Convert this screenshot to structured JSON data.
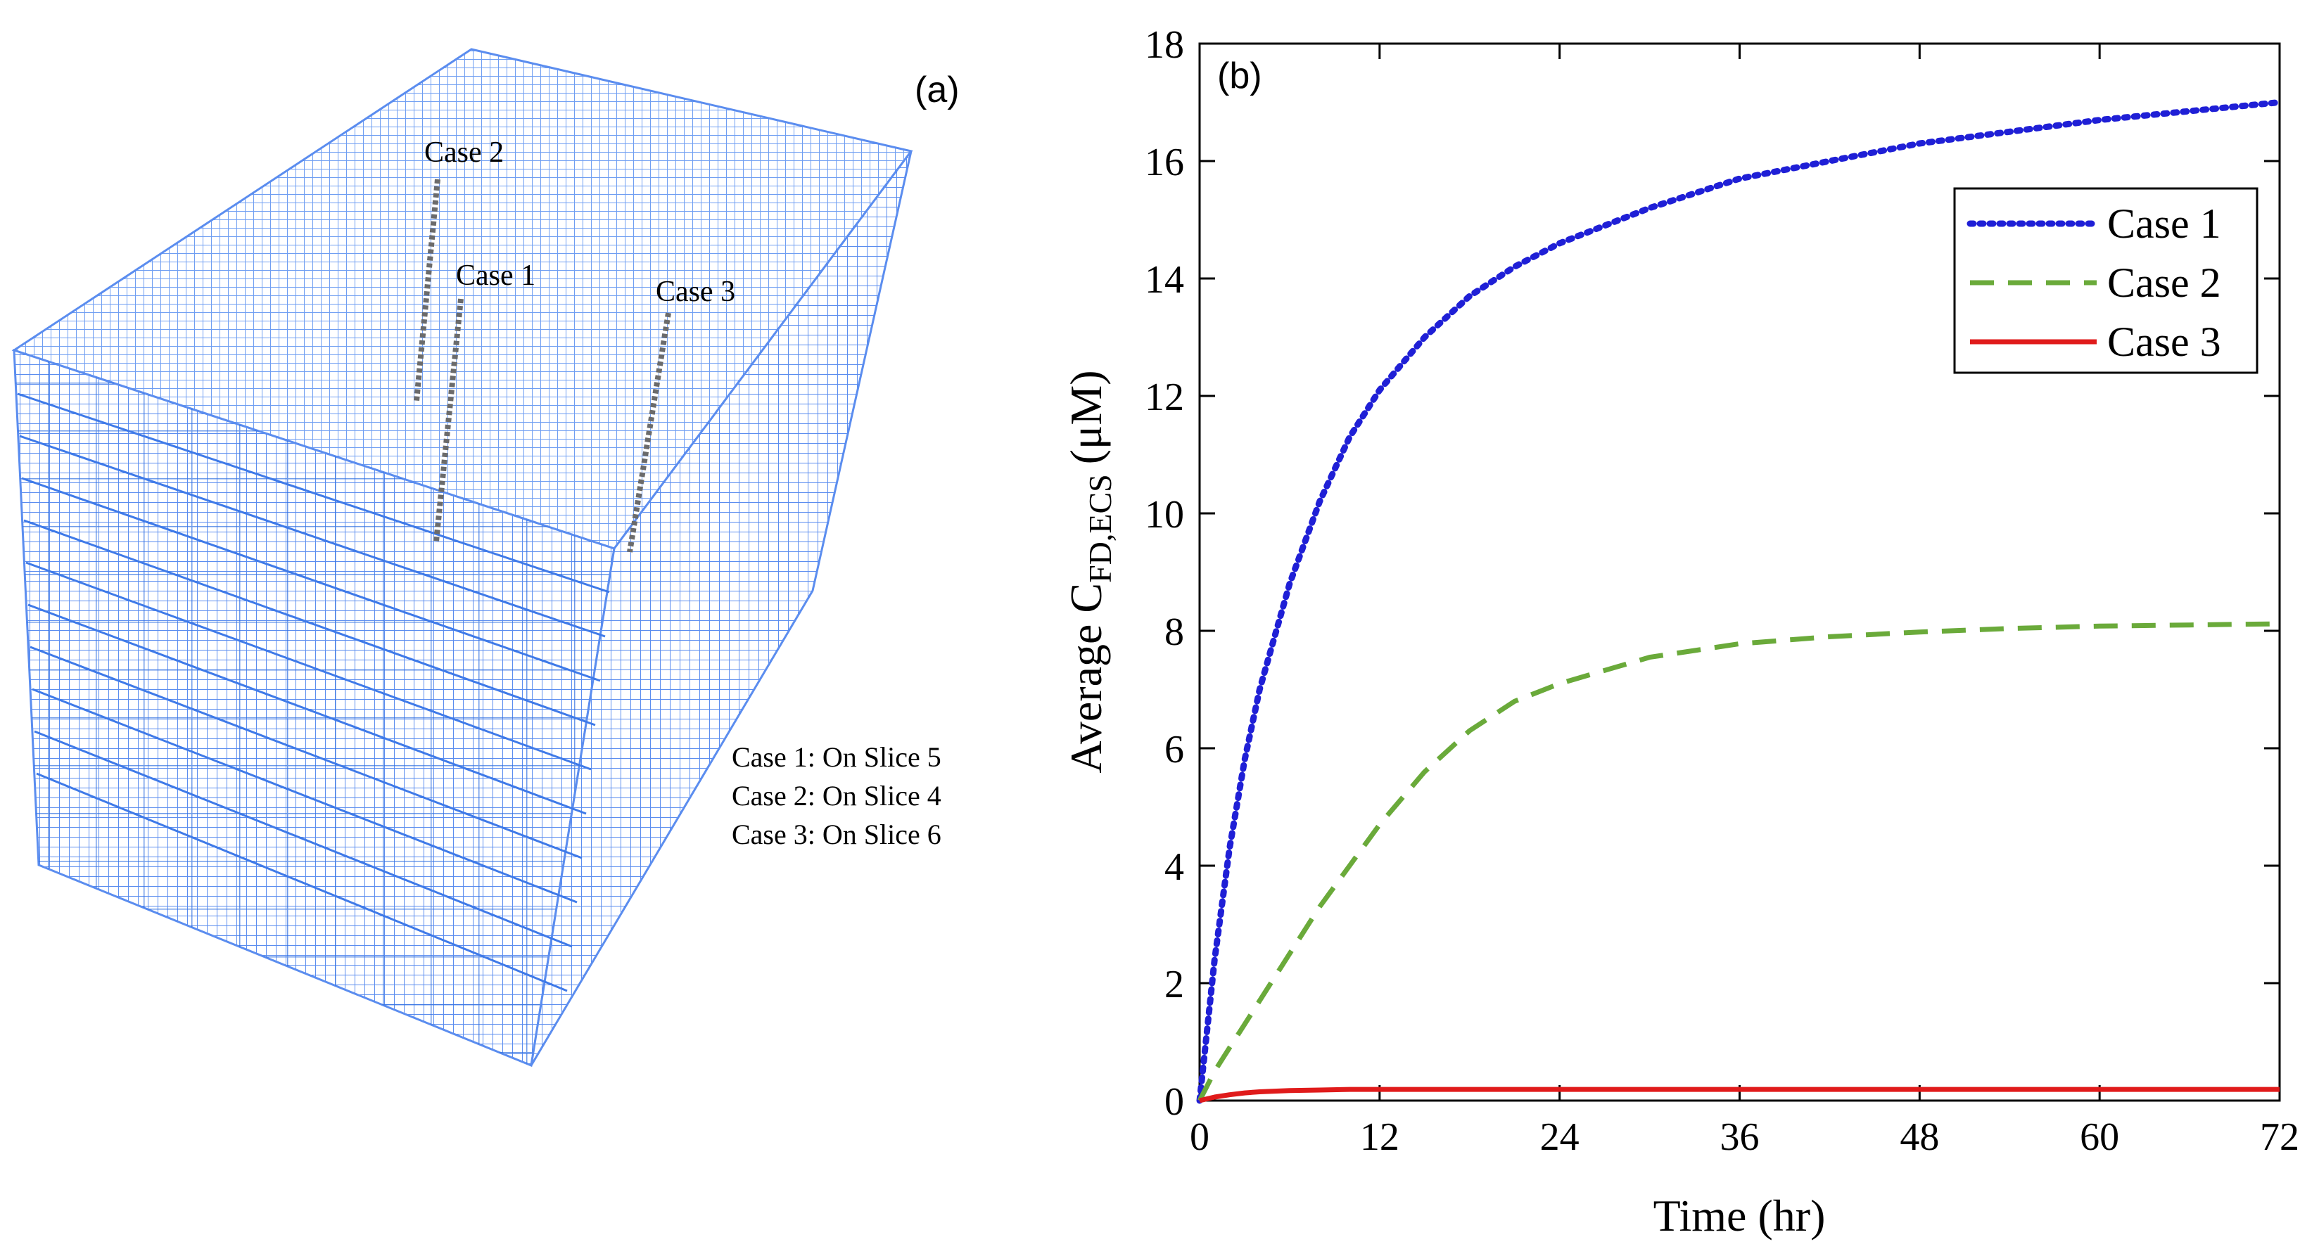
{
  "panel_a": {
    "label": "(a)",
    "well_labels": [
      "Case 2",
      "Case 1",
      "Case 3"
    ],
    "notes": [
      "Case 1: On Slice 5",
      "Case 2: On Slice 4",
      "Case 3: On Slice 6"
    ],
    "mesh_color": "#5b8def",
    "well_color": "#6b6b6b"
  },
  "chart_data": {
    "type": "line",
    "panel_label": "(b)",
    "title": "",
    "xlabel": "Time (hr)",
    "ylabel_prefix": "Average C",
    "ylabel_subscript": "FD,ECS",
    "ylabel_unit": "(μM)",
    "xlim": [
      0,
      72
    ],
    "ylim": [
      0,
      18
    ],
    "xticks": [
      0,
      12,
      24,
      36,
      48,
      60,
      72
    ],
    "yticks": [
      0,
      2,
      4,
      6,
      8,
      10,
      12,
      14,
      16,
      18
    ],
    "grid": false,
    "legend_position": "top-right",
    "x": [
      0,
      1,
      2,
      3,
      4,
      6,
      8,
      10,
      12,
      15,
      18,
      21,
      24,
      30,
      36,
      42,
      48,
      54,
      60,
      66,
      72
    ],
    "series": [
      {
        "name": "Case 1",
        "color": "#1f1fd6",
        "style": "dotted",
        "values": [
          0,
          2.4,
          4.3,
          5.8,
          7.0,
          8.8,
          10.2,
          11.3,
          12.1,
          13.0,
          13.7,
          14.2,
          14.6,
          15.2,
          15.7,
          16.0,
          16.3,
          16.5,
          16.7,
          16.85,
          17.0
        ]
      },
      {
        "name": "Case 2",
        "color": "#6aaa3a",
        "style": "dashed",
        "values": [
          0,
          0.5,
          0.9,
          1.3,
          1.7,
          2.5,
          3.3,
          4.0,
          4.7,
          5.6,
          6.3,
          6.8,
          7.1,
          7.55,
          7.78,
          7.9,
          7.98,
          8.04,
          8.08,
          8.1,
          8.12
        ]
      },
      {
        "name": "Case 3",
        "color": "#e01b1b",
        "style": "solid",
        "values": [
          0,
          0.06,
          0.1,
          0.13,
          0.15,
          0.17,
          0.18,
          0.19,
          0.19,
          0.19,
          0.19,
          0.19,
          0.19,
          0.19,
          0.19,
          0.19,
          0.19,
          0.19,
          0.19,
          0.19,
          0.19
        ]
      }
    ]
  }
}
